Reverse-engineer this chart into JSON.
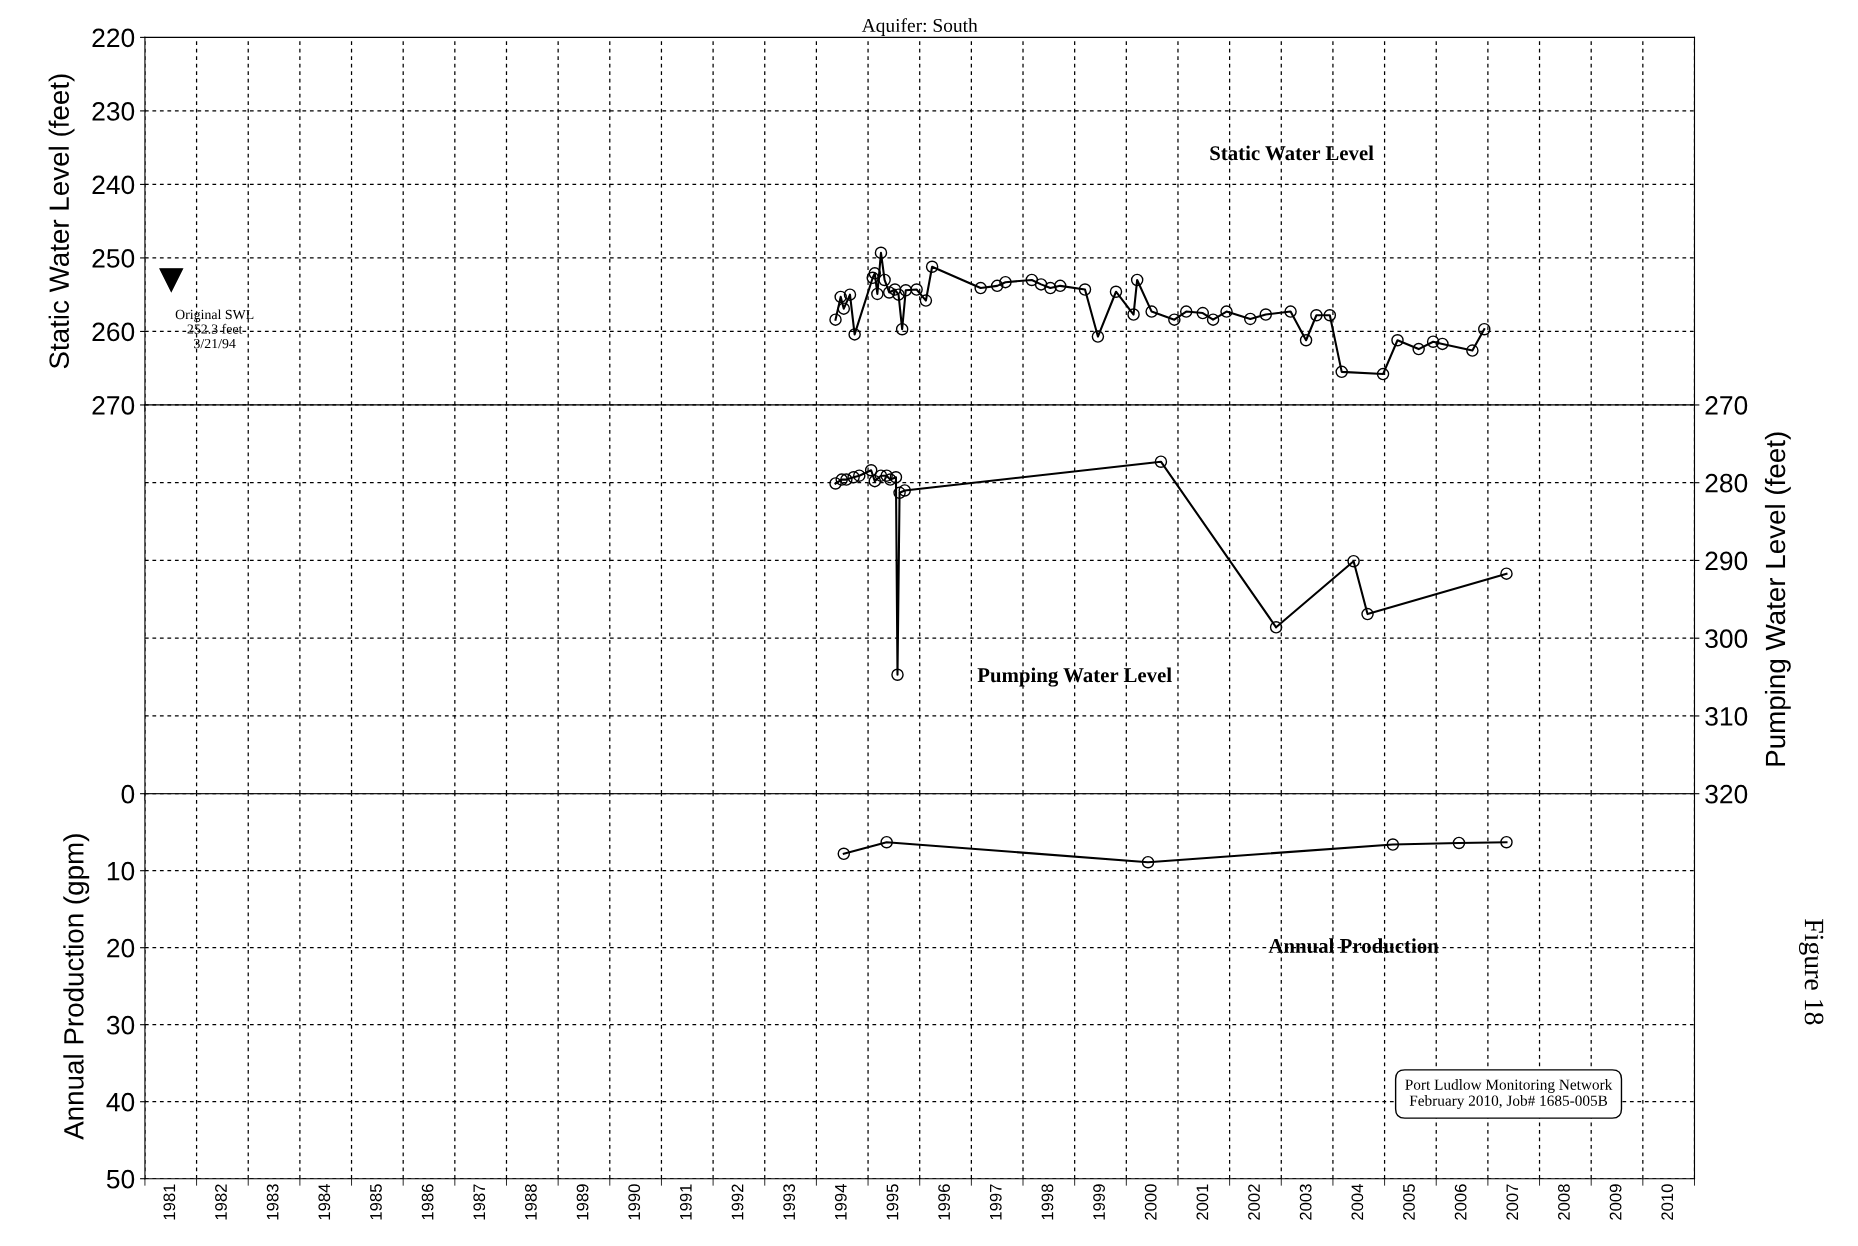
{
  "chart_data": [
    {
      "type": "line",
      "title": "Aquifer: South",
      "ylabel": "Static Water Level (feet)",
      "marker": "circle",
      "line_style": "solid",
      "grid": true,
      "tick_labels": "y",
      "xlim": [
        1981,
        2011
      ],
      "ylim": [
        270,
        220
      ],
      "yticks": [
        220,
        230,
        240,
        250,
        260,
        270
      ],
      "annotations": [
        "Original SWL\n252.3 feet\n3/21/94"
      ],
      "series": [
        {
          "name": "Static Water Level",
          "color": "#000000",
          "x": [
            1994.37,
            1994.47,
            1994.53,
            1994.65,
            1994.74,
            1995.09,
            1995.13,
            1995.18,
            1995.25,
            1995.32,
            1995.41,
            1995.52,
            1995.59,
            1995.66,
            1995.73,
            1995.94,
            1996.12,
            1996.24,
            1997.18,
            1997.5,
            1997.66,
            1998.17,
            1998.35,
            1998.53,
            1998.72,
            1999.2,
            1999.45,
            1999.8,
            2000.14,
            2000.21,
            2000.49,
            2000.93,
            2001.16,
            2001.48,
            2001.68,
            2001.94,
            2002.4,
            2002.7,
            2003.18,
            2003.48,
            2003.68,
            2003.94,
            2004.17,
            2004.97,
            2005.25,
            2005.66,
            2005.94,
            2006.12,
            2006.7,
            2006.93
          ],
          "values": [
            258.4,
            255.3,
            256.9,
            255.0,
            260.4,
            252.7,
            252.1,
            254.9,
            249.3,
            253.0,
            254.7,
            254.3,
            255.0,
            259.7,
            254.4,
            254.3,
            255.8,
            251.2,
            254.1,
            253.8,
            253.3,
            253.0,
            253.6,
            254.1,
            253.8,
            254.3,
            260.7,
            254.6,
            257.7,
            253.0,
            257.3,
            258.4,
            257.3,
            257.5,
            258.4,
            257.3,
            258.3,
            257.7,
            257.3,
            261.2,
            257.8,
            257.8,
            265.5,
            265.8,
            261.2,
            262.4,
            261.4,
            261.7,
            262.6,
            259.7
          ]
        }
      ]
    },
    {
      "type": "line",
      "ylabel": "Pumping Water Level (feet)",
      "marker": "circle",
      "line_style": "solid",
      "grid": true,
      "tick_labels": "y",
      "xlim": [
        1981,
        2011
      ],
      "ylim": [
        320,
        270
      ],
      "yticks": [
        270,
        280,
        290,
        300,
        310,
        320
      ],
      "series": [
        {
          "name": "Pumping Water Level",
          "color": "#000000",
          "x": [
            1994.37,
            1994.49,
            1994.58,
            1994.72,
            1994.83,
            1995.06,
            1995.13,
            1995.25,
            1995.36,
            1995.43,
            1995.54,
            1995.57,
            1995.61,
            1995.71,
            2000.67,
            2002.9,
            2004.4,
            2004.67,
            2007.36
          ],
          "values": [
            280.1,
            279.6,
            279.6,
            279.3,
            279.1,
            278.4,
            279.8,
            279.1,
            279.1,
            279.6,
            279.3,
            304.7,
            281.3,
            281.0,
            277.3,
            298.6,
            290.1,
            296.9,
            291.7
          ]
        }
      ]
    },
    {
      "type": "line",
      "ylabel": "Annual Production (gpm)",
      "marker": "circle",
      "line_style": "solid",
      "grid": true,
      "xlim": [
        1981,
        2011
      ],
      "ylim": [
        50,
        0
      ],
      "yticks": [
        0,
        10,
        20,
        30,
        40,
        50
      ],
      "xticks": [
        {
          "value": 1981.5,
          "label": "1981"
        },
        {
          "value": 1982.5,
          "label": "1982"
        },
        {
          "value": 1983.5,
          "label": "1983"
        },
        {
          "value": 1984.5,
          "label": "1984"
        },
        {
          "value": 1985.5,
          "label": "1985"
        },
        {
          "value": 1986.5,
          "label": "1986"
        },
        {
          "value": 1987.5,
          "label": "1987"
        },
        {
          "value": 1988.5,
          "label": "1988"
        },
        {
          "value": 1989.5,
          "label": "1989"
        },
        {
          "value": 1990.5,
          "label": "1990"
        },
        {
          "value": 1991.5,
          "label": "1991"
        },
        {
          "value": 1992.5,
          "label": "1992"
        },
        {
          "value": 1993.5,
          "label": "1993"
        },
        {
          "value": 1994.5,
          "label": "1994"
        },
        {
          "value": 1995.5,
          "label": "1995"
        },
        {
          "value": 1996.5,
          "label": "1996"
        },
        {
          "value": 1997.5,
          "label": "1997"
        },
        {
          "value": 1998.5,
          "label": "1998"
        },
        {
          "value": 1999.5,
          "label": "1999"
        },
        {
          "value": 2000.5,
          "label": "2000"
        },
        {
          "value": 2001.5,
          "label": "2001"
        },
        {
          "value": 2002.5,
          "label": "2002"
        },
        {
          "value": 2003.5,
          "label": "2003"
        },
        {
          "value": 2004.5,
          "label": "2004"
        },
        {
          "value": 2005.5,
          "label": "2005"
        },
        {
          "value": 2006.5,
          "label": "2006"
        },
        {
          "value": 2007.5,
          "label": "2007"
        },
        {
          "value": 2008.5,
          "label": "2008"
        },
        {
          "value": 2009.5,
          "label": "2009"
        },
        {
          "value": 2010.5,
          "label": "2010"
        }
      ],
      "annotations": [
        "Port Ludlow Monitoring Network\nFebruary 2010, Job# 1685-005B",
        "Figure 18"
      ],
      "series": [
        {
          "name": "Annual Production",
          "color": "#000000",
          "x": [
            1994.53,
            1995.36,
            2000.42,
            2005.16,
            2006.44,
            2007.36
          ],
          "values": [
            7.8,
            6.3,
            8.9,
            6.6,
            6.4,
            6.3
          ]
        }
      ]
    }
  ]
}
